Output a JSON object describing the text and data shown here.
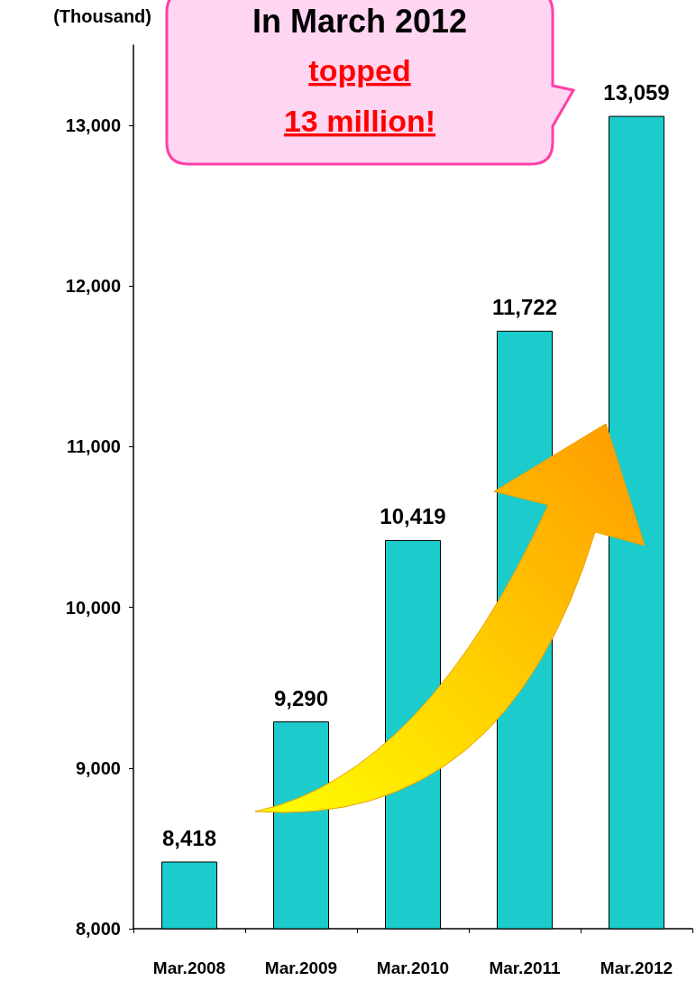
{
  "chart_data": {
    "type": "bar",
    "ylabel": "(Thousand)",
    "categories": [
      "Mar.2008",
      "Mar.2009",
      "Mar.2010",
      "Mar.2011",
      "Mar.2012"
    ],
    "values": [
      8418,
      9290,
      10419,
      11722,
      13059
    ],
    "value_labels": [
      "8,418",
      "9,290",
      "10,419",
      "11,722",
      "13,059"
    ],
    "color": "#1ccccc",
    "ylim": [
      8000,
      13500
    ],
    "yticks": [
      {
        "value": 8000,
        "label": "8,000"
      },
      {
        "value": 9000,
        "label": "9,000"
      },
      {
        "value": 10000,
        "label": "10,000"
      },
      {
        "value": 11000,
        "label": "11,000"
      },
      {
        "value": 12000,
        "label": "12,000"
      },
      {
        "value": 13000,
        "label": "13,000"
      }
    ],
    "annotations": [
      "In March 2012",
      "topped 13 million!"
    ]
  }
}
